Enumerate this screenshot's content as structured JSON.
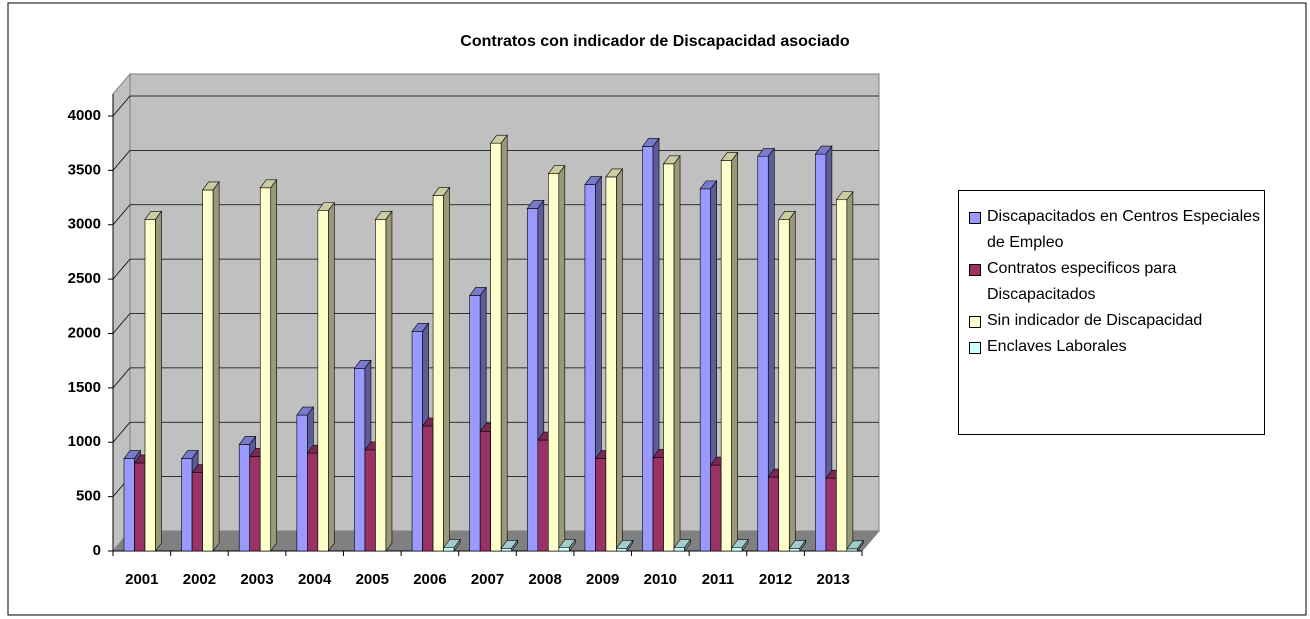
{
  "chart_data": {
    "type": "bar3d",
    "title": "Contratos con indicador de Discapacidad asociado",
    "categories": [
      "2001",
      "2002",
      "2003",
      "2004",
      "2005",
      "2006",
      "2007",
      "2008",
      "2009",
      "2010",
      "2011",
      "2012",
      "2013"
    ],
    "series": [
      {
        "name": "Discapacitados en Centros Especiales de Empleo",
        "color": "#9999ff",
        "values": [
          850,
          850,
          980,
          1250,
          1680,
          2020,
          2350,
          3150,
          3370,
          3720,
          3330,
          3630,
          3650
        ]
      },
      {
        "name": "Contratos especificos para Discapacitados",
        "color": "#993366",
        "values": [
          810,
          720,
          870,
          900,
          930,
          1150,
          1100,
          1020,
          850,
          860,
          790,
          680,
          670
        ]
      },
      {
        "name": "Sin indicador de Discapacidad",
        "color": "#ffffcc",
        "values": [
          3050,
          3320,
          3340,
          3130,
          3050,
          3270,
          3750,
          3470,
          3440,
          3560,
          3590,
          3050,
          3230
        ]
      },
      {
        "name": "Enclaves Laborales",
        "color": "#ccffff",
        "values": [
          null,
          null,
          null,
          null,
          null,
          30,
          25,
          30,
          25,
          30,
          30,
          25,
          20
        ]
      }
    ],
    "ylim": [
      0,
      4000
    ],
    "yticks": [
      0,
      500,
      1000,
      1500,
      2000,
      2500,
      3000,
      3500,
      4000
    ],
    "grid": true,
    "legend": "right"
  }
}
